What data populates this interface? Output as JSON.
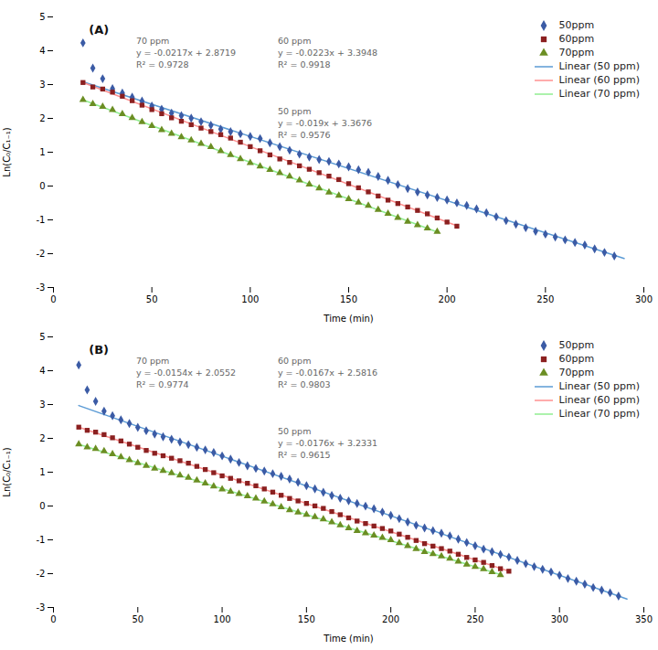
{
  "chart_data": [
    {
      "type": "scatter",
      "title": "(A)",
      "xlabel": "Time (min)",
      "ylabel": "Ln(C₀/C₁₋₁)",
      "xlim": [
        0,
        300
      ],
      "ylim": [
        -3,
        5
      ],
      "xticks": [
        0,
        50,
        100,
        150,
        200,
        250,
        300
      ],
      "yticks": [
        -3,
        -2,
        -1,
        0,
        1,
        2,
        3,
        4,
        5
      ],
      "legend": "upper right",
      "annotations": [
        "70 ppm\ny = -0.0217x + 2.8719\nR² = 0.9728",
        "60 ppm\ny = -0.0223x + 3.3948\nR² = 0.9918",
        "50 ppm\ny = -0.019x + 3.3676\nR² = 0.9576"
      ],
      "series": [
        {
          "name": "50ppm",
          "type": "scatter",
          "marker": "diamond",
          "color": "#3B5BA5",
          "x": [
            15,
            20,
            25,
            30,
            35,
            40,
            45,
            50,
            55,
            60,
            65,
            70,
            75,
            80,
            85,
            90,
            95,
            100,
            105,
            110,
            115,
            120,
            125,
            130,
            135,
            140,
            145,
            150,
            155,
            160,
            165,
            170,
            175,
            180,
            185,
            190,
            195,
            200,
            205,
            210,
            215,
            220,
            225,
            230,
            235,
            240,
            245,
            250,
            255,
            260,
            265,
            270,
            275,
            280,
            285
          ],
          "values": [
            4.2326,
            3.4876,
            3.1726,
            2.8776,
            2.7526,
            2.6276,
            2.5126,
            2.3676,
            2.2726,
            2.1576,
            2.0826,
            2.0076,
            1.9026,
            1.7976,
            1.6826,
            1.6076,
            1.5426,
            1.4676,
            1.4026,
            1.2776,
            1.1626,
            1.0576,
            0.9426,
            0.8576,
            0.7826,
            0.7276,
            0.6526,
            0.5676,
            0.4826,
            0.4076,
            0.2826,
            0.1676,
            0.0426,
            -0.0724,
            -0.1774,
            -0.2624,
            -0.3374,
            -0.4124,
            -0.4974,
            -0.5724,
            -0.6774,
            -0.7924,
            -0.9074,
            -1.0224,
            -1.1274,
            -1.2324,
            -1.3374,
            -1.4224,
            -1.5074,
            -1.5924,
            -1.6674,
            -1.7424,
            -1.8574,
            -1.9624,
            -2.0674
          ]
        },
        {
          "name": "60ppm",
          "type": "scatter",
          "marker": "square",
          "color": "#8B2020",
          "x": [
            15,
            20,
            25,
            30,
            35,
            40,
            45,
            50,
            55,
            60,
            65,
            70,
            75,
            80,
            85,
            90,
            95,
            100,
            105,
            110,
            115,
            120,
            125,
            130,
            135,
            140,
            145,
            150,
            155,
            160,
            165,
            170,
            175,
            180,
            185,
            190,
            195,
            200,
            205
          ],
          "values": [
            3.0603,
            2.9288,
            2.8673,
            2.7758,
            2.6543,
            2.5228,
            2.3913,
            2.2598,
            2.1383,
            2.0168,
            1.9153,
            1.8138,
            1.7123,
            1.6108,
            1.5193,
            1.4178,
            1.2963,
            1.1648,
            1.0433,
            0.9218,
            0.8003,
            0.6988,
            0.5973,
            0.4958,
            0.3943,
            0.2928,
            0.1913,
            0.0698,
            -0.0517,
            -0.1732,
            -0.2947,
            -0.4162,
            -0.5177,
            -0.6192,
            -0.7207,
            -0.8222,
            -0.9437,
            -1.0652,
            -1.1867
          ]
        },
        {
          "name": "70ppm",
          "type": "scatter",
          "marker": "triangle",
          "color": "#6B8E23",
          "x": [
            15,
            20,
            25,
            30,
            35,
            40,
            45,
            50,
            55,
            60,
            65,
            70,
            75,
            80,
            85,
            90,
            95,
            100,
            105,
            110,
            115,
            120,
            125,
            130,
            135,
            140,
            145,
            150,
            155,
            160,
            165,
            170,
            175,
            180,
            185,
            190,
            195
          ],
          "values": [
            2.5464,
            2.4279,
            2.3494,
            2.2509,
            2.1324,
            2.0139,
            1.8954,
            1.7769,
            1.6584,
            1.5499,
            1.4514,
            1.3529,
            1.2544,
            1.1559,
            1.0374,
            0.9189,
            0.8004,
            0.6819,
            0.5834,
            0.4849,
            0.3864,
            0.2879,
            0.1694,
            0.0509,
            -0.0676,
            -0.1861,
            -0.2846,
            -0.3831,
            -0.4816,
            -0.5801,
            -0.6986,
            -0.8171,
            -0.9356,
            -1.0541,
            -1.1526,
            -1.2511,
            -1.3496
          ]
        },
        {
          "name": "Linear (50 ppm)",
          "type": "line",
          "color": "#5B9BD5",
          "x": [
            15,
            290
          ],
          "values": [
            3.0826,
            -2.1424
          ]
        },
        {
          "name": "Linear (60 ppm)",
          "type": "line",
          "color": "#FF9090",
          "x": [
            15,
            205
          ],
          "values": [
            3.0603,
            -1.1767
          ]
        },
        {
          "name": "Linear (70 ppm)",
          "type": "line",
          "color": "#90EE90",
          "x": [
            15,
            195
          ],
          "values": [
            2.5464,
            -1.3596
          ]
        }
      ]
    },
    {
      "type": "scatter",
      "title": "(B)",
      "xlabel": "Time (min)",
      "ylabel": "Ln(C₀/C₁₋₁)",
      "xlim": [
        0,
        350
      ],
      "ylim": [
        -3,
        5
      ],
      "xticks": [
        0,
        50,
        100,
        150,
        200,
        250,
        300,
        350
      ],
      "yticks": [
        -3,
        -2,
        -1,
        0,
        1,
        2,
        3,
        4,
        5
      ],
      "legend": "upper right",
      "annotations": [
        "70 ppm\ny = -0.0154x + 2.0552\nR² = 0.9774",
        "60 ppm\ny = -0.0167x + 2.5816\nR² = 0.9803",
        "50 ppm\ny = -0.0176x + 3.2331\nR² = 0.9615"
      ],
      "series": [
        {
          "name": "50ppm",
          "type": "scatter",
          "marker": "diamond",
          "color": "#3B5BA5",
          "x": [
            15,
            20,
            25,
            30,
            35,
            40,
            45,
            50,
            55,
            60,
            65,
            70,
            75,
            80,
            85,
            90,
            95,
            100,
            105,
            110,
            115,
            120,
            125,
            130,
            135,
            140,
            145,
            150,
            155,
            160,
            165,
            170,
            175,
            180,
            185,
            190,
            195,
            200,
            205,
            210,
            215,
            220,
            225,
            230,
            235,
            240,
            245,
            250,
            255,
            260,
            265,
            270,
            275,
            280,
            285,
            290,
            295,
            300,
            305,
            310,
            315,
            320,
            325,
            330,
            335
          ],
          "values": [
            4.1691,
            3.4311,
            3.0931,
            2.8051,
            2.6671,
            2.5491,
            2.4411,
            2.3231,
            2.2251,
            2.1271,
            2.0491,
            1.9711,
            1.8931,
            1.8151,
            1.7371,
            1.6591,
            1.5811,
            1.4831,
            1.3851,
            1.2871,
            1.1891,
            1.1111,
            1.0331,
            0.9551,
            0.8771,
            0.7991,
            0.7011,
            0.6031,
            0.5051,
            0.4071,
            0.3091,
            0.2311,
            0.1531,
            0.0751,
            -0.0029,
            -0.0809,
            -0.1789,
            -0.2769,
            -0.3749,
            -0.4729,
            -0.5709,
            -0.6489,
            -0.7269,
            -0.8049,
            -0.8829,
            -0.9809,
            -1.0789,
            -1.1769,
            -1.2749,
            -1.3529,
            -1.4309,
            -1.5089,
            -1.6069,
            -1.7049,
            -1.7929,
            -1.8709,
            -1.9489,
            -2.0469,
            -2.1449,
            -2.2229,
            -2.3109,
            -2.4089,
            -2.4869,
            -2.5649,
            -2.6629
          ]
        },
        {
          "name": "60ppm",
          "type": "scatter",
          "marker": "square",
          "color": "#8B2020",
          "x": [
            15,
            20,
            25,
            30,
            35,
            40,
            45,
            50,
            55,
            60,
            65,
            70,
            75,
            80,
            85,
            90,
            95,
            100,
            105,
            110,
            115,
            120,
            125,
            130,
            135,
            140,
            145,
            150,
            155,
            160,
            165,
            170,
            175,
            180,
            185,
            190,
            195,
            200,
            205,
            210,
            215,
            220,
            225,
            230,
            235,
            240,
            245,
            250,
            255,
            260,
            265,
            270
          ],
          "values": [
            2.3311,
            2.2376,
            2.1841,
            2.1106,
            2.0171,
            1.9236,
            1.8301,
            1.7366,
            1.6431,
            1.5596,
            1.4861,
            1.4126,
            1.3391,
            1.2656,
            1.1721,
            1.0786,
            0.9851,
            0.8916,
            0.8181,
            0.7446,
            0.6711,
            0.5976,
            0.5041,
            0.4106,
            0.3171,
            0.2236,
            0.1501,
            0.0766,
            0.0031,
            -0.0704,
            -0.1639,
            -0.2574,
            -0.3509,
            -0.4444,
            -0.5179,
            -0.5914,
            -0.6649,
            -0.7384,
            -0.8319,
            -0.9254,
            -1.0189,
            -1.1124,
            -1.1859,
            -1.2594,
            -1.3329,
            -1.4264,
            -1.5199,
            -1.5934,
            -1.6669,
            -1.7604,
            -1.8539,
            -1.9274
          ]
        },
        {
          "name": "70ppm",
          "type": "scatter",
          "marker": "triangle",
          "color": "#6B8E23",
          "x": [
            15,
            20,
            25,
            30,
            35,
            40,
            45,
            50,
            55,
            60,
            65,
            70,
            75,
            80,
            85,
            90,
            95,
            100,
            105,
            110,
            115,
            120,
            125,
            130,
            135,
            140,
            145,
            150,
            155,
            160,
            165,
            170,
            175,
            180,
            185,
            190,
            195,
            200,
            205,
            210,
            215,
            220,
            225,
            230,
            235,
            240,
            245,
            250,
            255,
            260,
            265
          ],
          "values": [
            1.8242,
            1.7372,
            1.6902,
            1.6232,
            1.5362,
            1.4492,
            1.3622,
            1.2752,
            1.1882,
            1.1112,
            1.0442,
            0.9772,
            0.9102,
            0.8432,
            0.7562,
            0.6692,
            0.5822,
            0.4952,
            0.4282,
            0.3612,
            0.2942,
            0.2272,
            0.1402,
            0.0532,
            -0.0338,
            -0.1208,
            -0.1878,
            -0.2548,
            -0.3218,
            -0.3888,
            -0.4758,
            -0.5628,
            -0.6498,
            -0.7368,
            -0.8038,
            -0.8708,
            -0.9378,
            -1.0048,
            -1.0918,
            -1.1788,
            -1.2658,
            -1.3528,
            -1.4198,
            -1.4868,
            -1.5538,
            -1.6408,
            -1.7278,
            -1.7948,
            -1.8618,
            -1.9488,
            -2.0358
          ]
        },
        {
          "name": "Linear (50 ppm)",
          "type": "line",
          "color": "#5B9BD5",
          "x": [
            15,
            340
          ],
          "values": [
            2.9691,
            -2.7509
          ]
        },
        {
          "name": "Linear (60 ppm)",
          "type": "line",
          "color": "#FF9090",
          "x": [
            15,
            270
          ],
          "values": [
            2.3311,
            -1.9274
          ]
        },
        {
          "name": "Linear (70 ppm)",
          "type": "line",
          "color": "#90EE90",
          "x": [
            15,
            265
          ],
          "values": [
            1.8242,
            -2.0258
          ]
        }
      ]
    }
  ]
}
